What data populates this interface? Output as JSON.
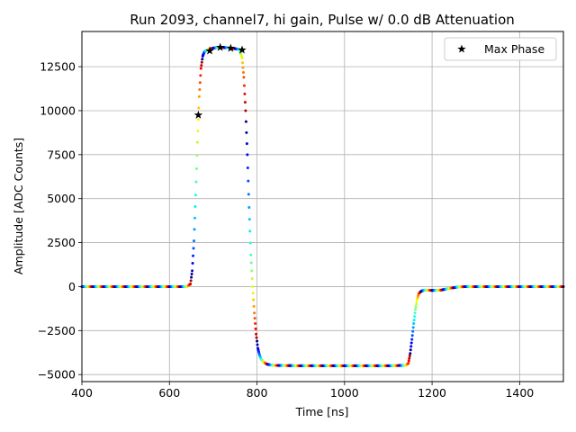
{
  "chart_data": {
    "type": "scatter",
    "title": "Run 2093, channel7, hi gain, Pulse w/ 0.0 dB Attenuation",
    "xlabel": "Time [ns]",
    "ylabel": "Amplitude [ADC Counts]",
    "xlim": [
      400,
      1500
    ],
    "ylim": [
      -5400,
      14500
    ],
    "xticks": [
      400,
      600,
      800,
      1000,
      1200,
      1400
    ],
    "yticks": [
      -5000,
      -2500,
      0,
      2500,
      5000,
      7500,
      10000,
      12500
    ],
    "xtick_labels": [
      "400",
      "600",
      "800",
      "1000",
      "1200",
      "1400"
    ],
    "ytick_labels": [
      "−5000",
      "−2500",
      "0",
      "2500",
      "5000",
      "7500",
      "10000",
      "12500"
    ],
    "grid": true,
    "legend": {
      "position": "top-right",
      "entries": [
        "Max Phase"
      ]
    },
    "colormap": "jet",
    "waveform": {
      "name": "",
      "x": [
        400,
        500,
        600,
        640,
        648,
        652,
        656,
        660,
        664,
        668,
        672,
        676,
        680,
        690,
        700,
        720,
        740,
        760,
        766,
        770,
        774,
        778,
        782,
        786,
        790,
        794,
        798,
        802,
        806,
        810,
        816,
        822,
        830,
        840,
        900,
        1000,
        1100,
        1140,
        1146,
        1150,
        1154,
        1158,
        1162,
        1166,
        1170,
        1176,
        1182,
        1190,
        1200,
        1220,
        1240,
        1260,
        1280,
        1300,
        1400,
        1500
      ],
      "y": [
        0,
        0,
        0,
        0,
        150,
        900,
        2600,
        5200,
        8200,
        10800,
        12400,
        13100,
        13350,
        13500,
        13560,
        13600,
        13560,
        13480,
        13000,
        11900,
        10000,
        7500,
        4500,
        1800,
        0,
        -1500,
        -2700,
        -3500,
        -3900,
        -4150,
        -4300,
        -4400,
        -4450,
        -4480,
        -4500,
        -4500,
        -4500,
        -4480,
        -4350,
        -3800,
        -3000,
        -2100,
        -1300,
        -700,
        -380,
        -250,
        -200,
        -200,
        -220,
        -200,
        -100,
        -20,
        0,
        0,
        0,
        0
      ]
    },
    "series": [
      {
        "name": "Max Phase",
        "marker": "star",
        "color": "#000000",
        "x": [
          666,
          692,
          716,
          740,
          766
        ],
        "y": [
          9750,
          13400,
          13600,
          13550,
          13450
        ]
      }
    ]
  }
}
